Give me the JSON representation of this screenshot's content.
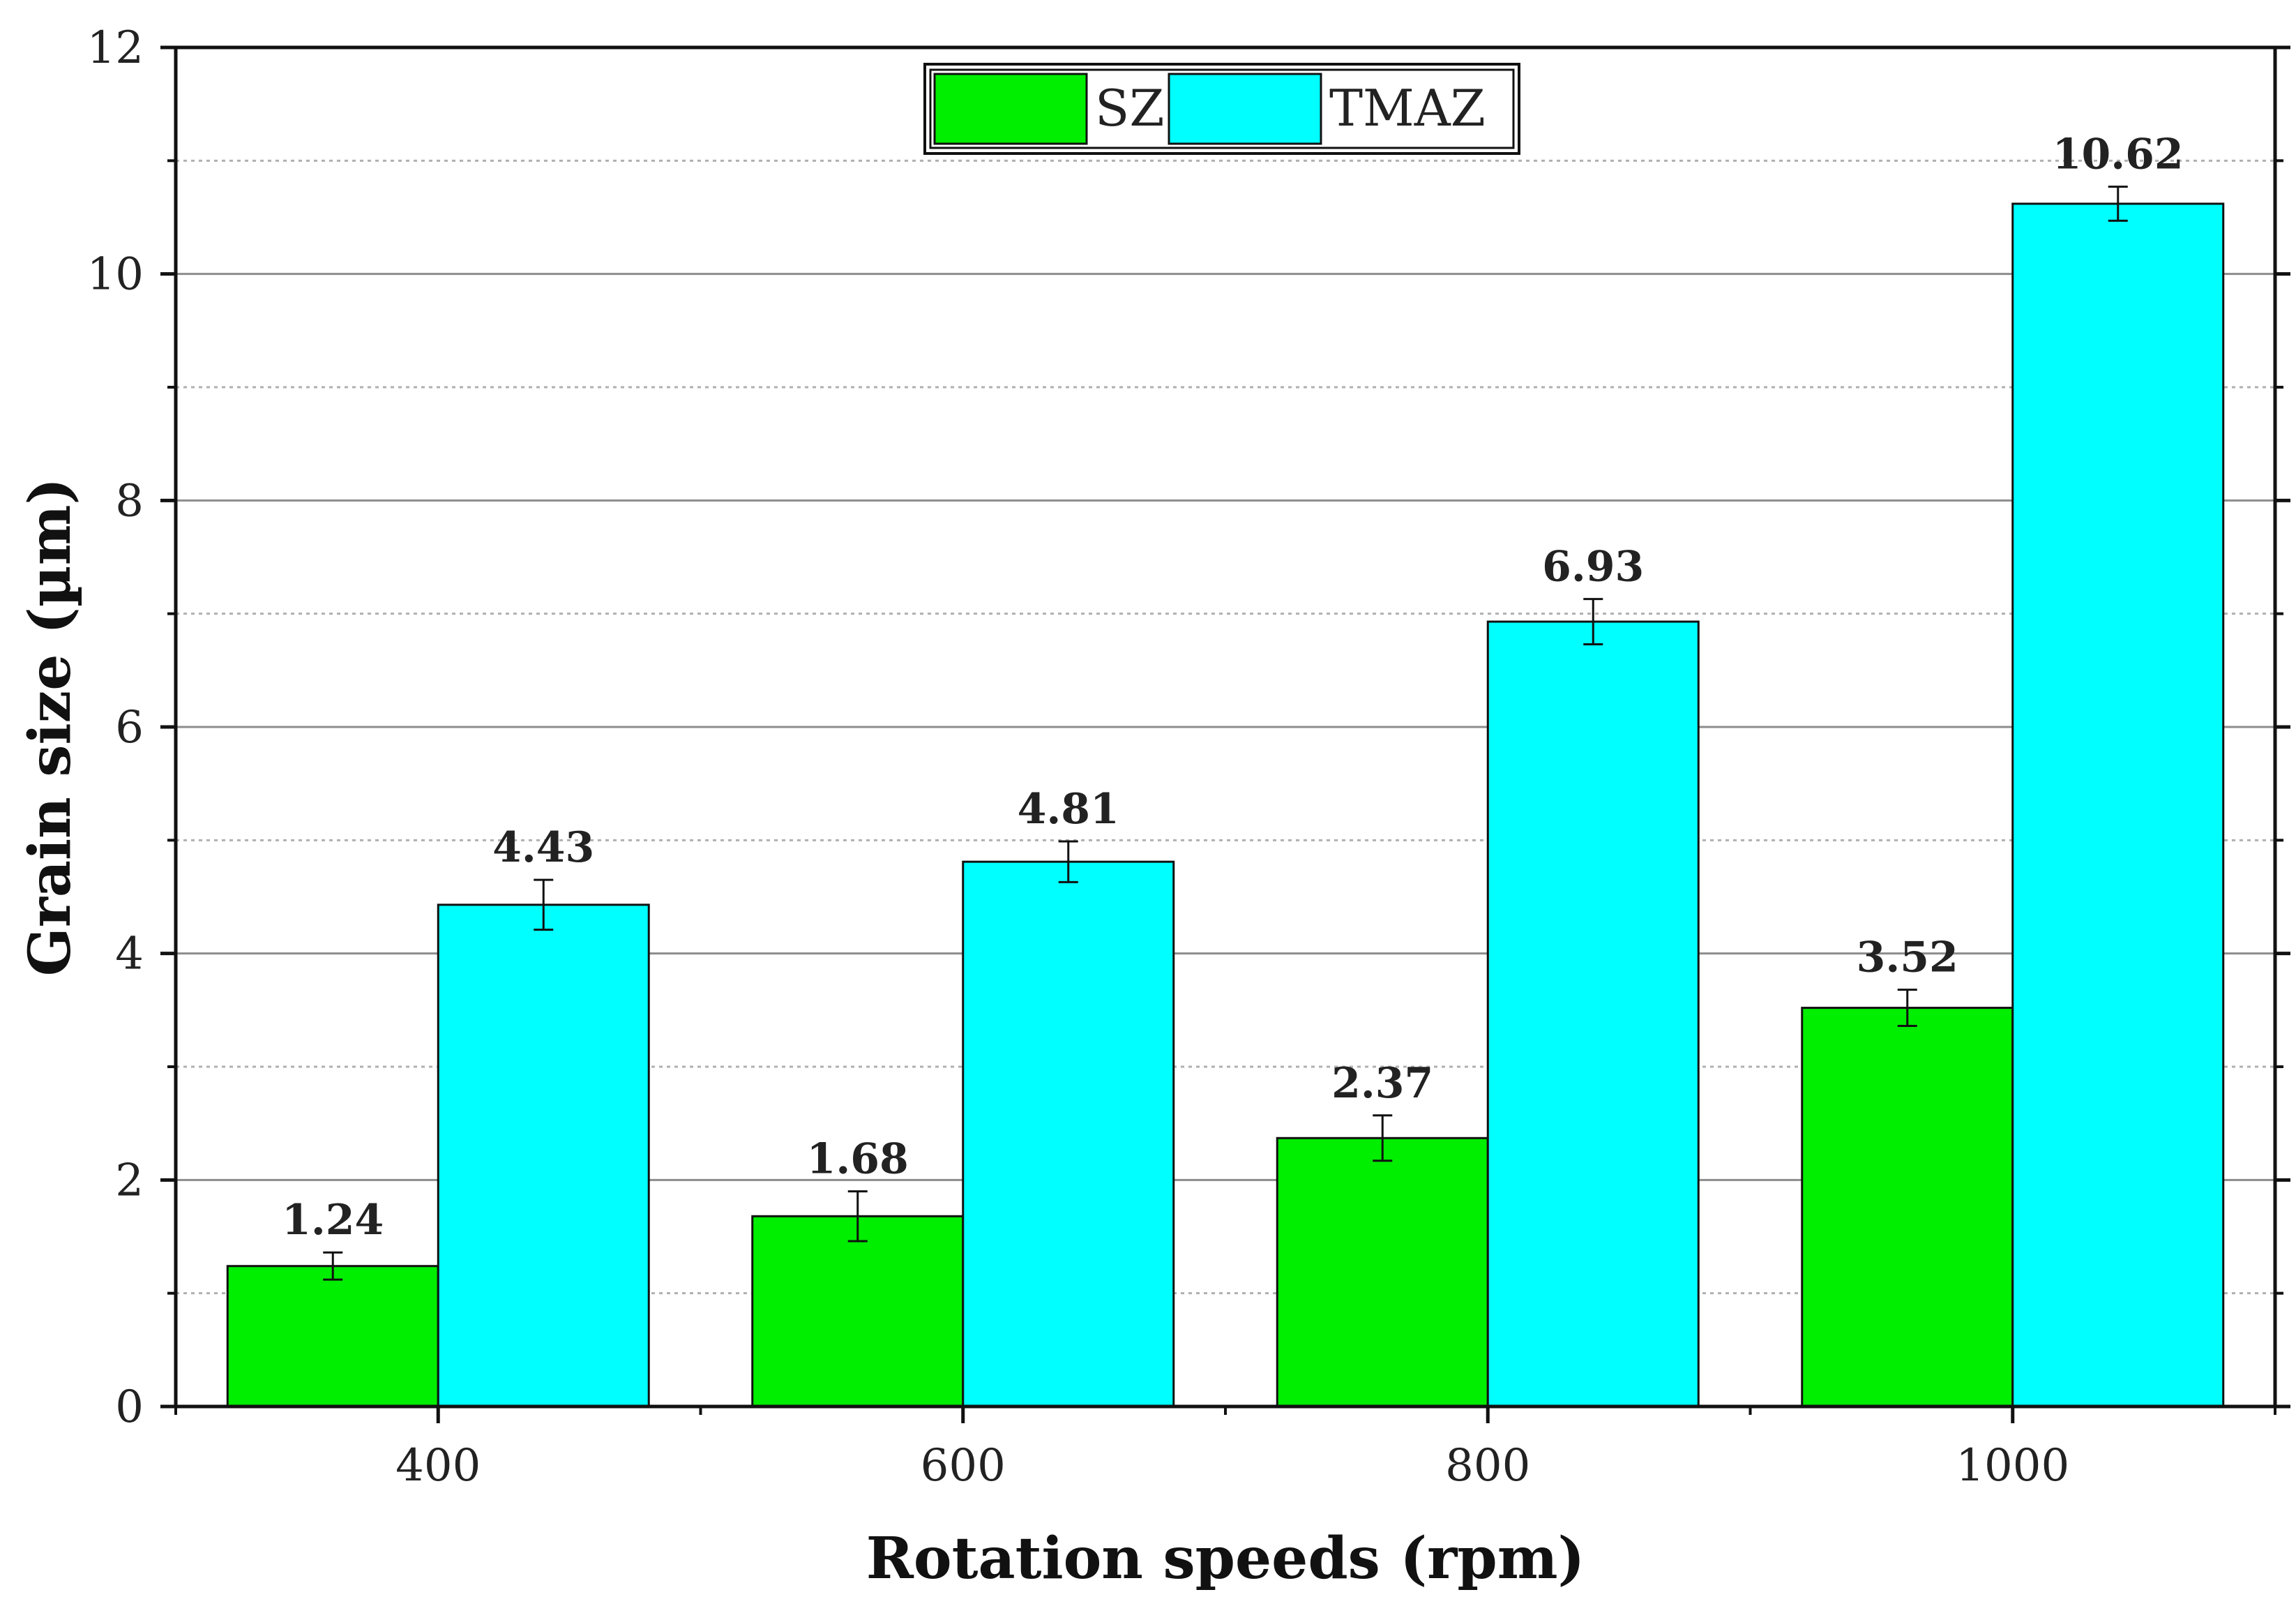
{
  "chart_data": {
    "type": "bar",
    "title": "",
    "xlabel": "Rotation speeds (rpm)",
    "ylabel": "Grain size (µm)",
    "ylim": [
      0,
      12
    ],
    "yticks": [
      0,
      2,
      4,
      6,
      8,
      10,
      12
    ],
    "categories": [
      "400",
      "600",
      "800",
      "1000"
    ],
    "series": [
      {
        "name": "SZ",
        "color": "#00ee00",
        "values": [
          1.24,
          1.68,
          2.37,
          3.52
        ],
        "labels": [
          "1.24",
          "1.68",
          "2.37",
          "3.52"
        ],
        "errors": [
          0.12,
          0.22,
          0.2,
          0.16
        ]
      },
      {
        "name": "TMAZ",
        "color": "#00ffff",
        "values": [
          4.43,
          4.81,
          6.93,
          10.62
        ],
        "labels": [
          "4.43",
          "4.81",
          "6.93",
          "10.62"
        ],
        "errors": [
          0.22,
          0.18,
          0.2,
          0.15
        ]
      }
    ],
    "grid": true,
    "legend": "top-center"
  }
}
